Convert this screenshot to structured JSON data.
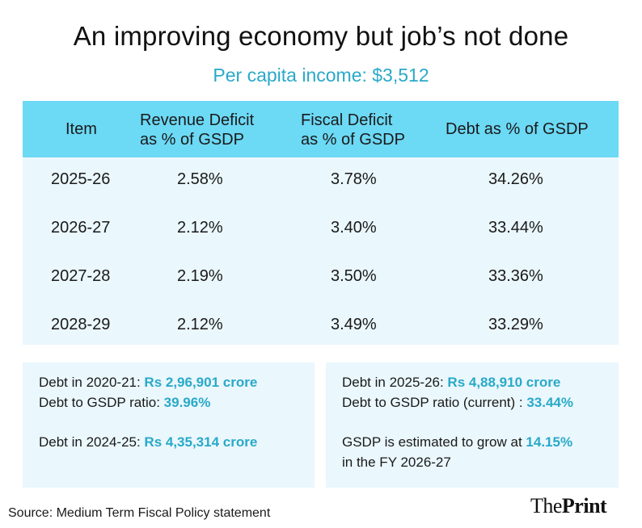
{
  "title": "An improving economy but job’s not done",
  "subtitle": "Per capita income: $3,512",
  "table": {
    "headers": [
      {
        "line1": "Item",
        "line2": ""
      },
      {
        "line1": "Revenue Deficit",
        "line2": "as % of GSDP"
      },
      {
        "line1": "Fiscal Deficit",
        "line2": "as % of GSDP"
      },
      {
        "line1": "Debt as % of GSDP",
        "line2": ""
      }
    ],
    "rows": [
      [
        "2025-26",
        "2.58%",
        "3.78%",
        "34.26%"
      ],
      [
        "2026-27",
        "2.12%",
        "3.40%",
        "33.44%"
      ],
      [
        "2027-28",
        "2.19%",
        "3.50%",
        "33.36%"
      ],
      [
        "2028-29",
        "2.12%",
        "3.49%",
        "33.29%"
      ]
    ]
  },
  "left_box": {
    "debt_2020_label": "Debt in 2020-21: ",
    "debt_2020_value": "Rs 2,96,901 crore",
    "ratio_label": "Debt to GSDP ratio: ",
    "ratio_value": "39.96%",
    "debt_2024_label": "Debt in 2024-25: ",
    "debt_2024_value": "Rs 4,35,314 crore"
  },
  "right_box": {
    "debt_2025_label": "Debt in 2025-26: ",
    "debt_2025_value": "Rs 4,88,910 crore",
    "ratio_label": "Debt to GSDP ratio (current) : ",
    "ratio_value": "33.44%",
    "gsdp_label": "GSDP is estimated to grow at ",
    "gsdp_value": "14.15%",
    "gsdp_suffix": "in the FY 2026-27"
  },
  "source": "Source: Medium Term Fiscal Policy statement",
  "logo": {
    "part1": "The",
    "part2": "Print"
  },
  "colors": {
    "accent": "#29a9c9",
    "header_bg": "#6cd9f5",
    "panel_bg": "#eaf7fc"
  }
}
